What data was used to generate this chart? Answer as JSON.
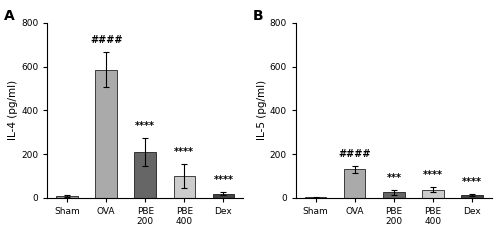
{
  "panel_A": {
    "label": "A",
    "ylabel": "IL-4 (pg/ml)",
    "categories": [
      "Sham",
      "OVA",
      "PBE\n200",
      "PBE\n400",
      "Dex"
    ],
    "values": [
      10,
      585,
      210,
      100,
      20
    ],
    "errors": [
      5,
      80,
      65,
      55,
      8
    ],
    "colors": [
      "#999999",
      "#aaaaaa",
      "#666666",
      "#cccccc",
      "#444444"
    ],
    "ylim": [
      0,
      800
    ],
    "yticks": [
      0,
      200,
      400,
      600,
      800
    ],
    "sig_hashes": {
      "bar": 1,
      "text": "####",
      "fontsize": 7
    },
    "sig_stars": [
      {
        "bar": 2,
        "text": "****",
        "fontsize": 7
      },
      {
        "bar": 3,
        "text": "****",
        "fontsize": 7
      },
      {
        "bar": 4,
        "text": "****",
        "fontsize": 7
      }
    ]
  },
  "panel_B": {
    "label": "B",
    "ylabel": "IL-5 (pg/ml)",
    "categories": [
      "Sham",
      "OVA",
      "PBE\n200",
      "PBE\n400",
      "Dex"
    ],
    "values": [
      3,
      130,
      25,
      38,
      12
    ],
    "errors": [
      2,
      18,
      10,
      10,
      5
    ],
    "colors": [
      "#999999",
      "#aaaaaa",
      "#666666",
      "#cccccc",
      "#444444"
    ],
    "ylim": [
      0,
      800
    ],
    "yticks": [
      0,
      200,
      400,
      600,
      800
    ],
    "sig_hashes": {
      "bar": 1,
      "text": "####",
      "fontsize": 7
    },
    "sig_stars": [
      {
        "bar": 2,
        "text": "***",
        "fontsize": 7
      },
      {
        "bar": 3,
        "text": "****",
        "fontsize": 7
      },
      {
        "bar": 4,
        "text": "****",
        "fontsize": 7
      }
    ]
  },
  "bar_width": 0.55,
  "background_color": "#ffffff",
  "tick_fontsize": 6.5,
  "label_fontsize": 7.5,
  "panel_label_fontsize": 10
}
